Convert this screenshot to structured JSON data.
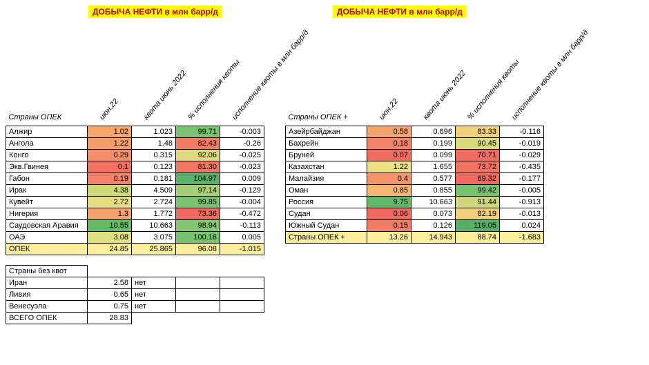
{
  "title_left": "ДОБЫЧА НЕФТИ в млн барр/д",
  "title_right": "ДОБЫЧА НЕФТИ в млн барр/д",
  "headers": {
    "country_left": "Страны ОПЕК",
    "country_right": "Страны ОПЕК +",
    "no_quota": "Страны без квот",
    "col1": "июн.22",
    "col2": "квота июнь 2022",
    "col3": "% исполнения квоты",
    "col4": "исполнение квоты в млн барр/д"
  },
  "opec": {
    "rows": [
      {
        "c": "Алжир",
        "v1": "1.02",
        "v2": "1.023",
        "v3": "99.71",
        "v4": "-0.003",
        "bg1": "#f8a66c",
        "bg3": "#7cc36f"
      },
      {
        "c": "Ангола",
        "v1": "1.22",
        "v2": "1.48",
        "v3": "82.43",
        "v4": "-0.26",
        "bg1": "#f49b6a",
        "bg3": "#f37a64"
      },
      {
        "c": "Конго",
        "v1": "0.29",
        "v2": "0.315",
        "v3": "92.06",
        "v4": "-0.025",
        "bg1": "#f68e6a",
        "bg3": "#e0da7d"
      },
      {
        "c": "Экв.Гвинея",
        "v1": "0.1",
        "v2": "0.123",
        "v3": "81.30",
        "v4": "-0.023",
        "bg1": "#f27161",
        "bg3": "#f37864"
      },
      {
        "c": "Габон",
        "v1": "0.19",
        "v2": "0.181",
        "v3": "104.97",
        "v4": "0.009",
        "bg1": "#f4836a",
        "bg3": "#5bb169"
      },
      {
        "c": "Ирак",
        "v1": "4.38",
        "v2": "4.509",
        "v3": "97.14",
        "v4": "-0.129",
        "bg1": "#d0d97a",
        "bg3": "#a7cf76"
      },
      {
        "c": "Кувейт",
        "v1": "2.72",
        "v2": "2.724",
        "v3": "99.85",
        "v4": "-0.004",
        "bg1": "#e6df82",
        "bg3": "#7bc36f"
      },
      {
        "c": "Нигерия",
        "v1": "1.3",
        "v2": "1.772",
        "v3": "73.36",
        "v4": "-0.472",
        "bg1": "#f5a26b",
        "bg3": "#ef6b60"
      },
      {
        "c": "Саудовская Аравия",
        "v1": "10.55",
        "v2": "10.663",
        "v3": "98.94",
        "v4": "-0.113",
        "bg1": "#65ba68",
        "bg3": "#86c672"
      },
      {
        "c": "ОАЭ",
        "v1": "3.08",
        "v2": "3.075",
        "v3": "100.16",
        "v4": "0.005",
        "bg1": "#dde181",
        "bg3": "#76c26e"
      }
    ],
    "total": {
      "c": "ОПЕК",
      "v1": "24.85",
      "v2": "25.865",
      "v3": "96.08",
      "v4": "-1.015"
    }
  },
  "opec_plus": {
    "rows": [
      {
        "c": "Азейрбайджан",
        "v1": "0.58",
        "v2": "0.696",
        "v3": "83.33",
        "v4": "-0.116",
        "bg1": "#f6a66c",
        "bg3": "#f1d07c"
      },
      {
        "c": "Бахрейн",
        "v1": "0.18",
        "v2": "0.199",
        "v3": "90.45",
        "v4": "-0.019",
        "bg1": "#f3826a",
        "bg3": "#d6db7c"
      },
      {
        "c": "Бруней",
        "v1": "0.07",
        "v2": "0.099",
        "v3": "70.71",
        "v4": "-0.029",
        "bg1": "#ef6c60",
        "bg3": "#f06c60"
      },
      {
        "c": "Казахстан",
        "v1": "1.22",
        "v2": "1.655",
        "v3": "73.72",
        "v4": "-0.435",
        "bg1": "#ece184",
        "bg3": "#f17461"
      },
      {
        "c": "Малайзия",
        "v1": "0.4",
        "v2": "0.577",
        "v3": "69.32",
        "v4": "-0.177",
        "bg1": "#f4966a",
        "bg3": "#ef6b60"
      },
      {
        "c": "Оман",
        "v1": "0.85",
        "v2": "0.855",
        "v3": "99.42",
        "v4": "-0.005",
        "bg1": "#f7b573",
        "bg3": "#77c26e"
      },
      {
        "c": "Россия",
        "v1": "9.75",
        "v2": "10.663",
        "v3": "91.44",
        "v4": "-0.913",
        "bg1": "#65ba68",
        "bg3": "#ced87a"
      },
      {
        "c": "Судан",
        "v1": "0.06",
        "v2": "0.073",
        "v3": "82.19",
        "v4": "-0.013",
        "bg1": "#ef6b60",
        "bg3": "#f3ce7c"
      },
      {
        "c": "Южный Судан",
        "v1": "0.15",
        "v2": "0.126",
        "v3": "119.05",
        "v4": "0.024",
        "bg1": "#f17c65",
        "bg3": "#56ae67"
      }
    ],
    "total": {
      "c": "Страны ОПЕК +",
      "v1": "13.26",
      "v2": "14.943",
      "v3": "88.74",
      "v4": "-1.683"
    }
  },
  "no_quota": {
    "rows": [
      {
        "c": "Иран",
        "v1": "2.58",
        "v2": "нет"
      },
      {
        "c": "Ливия",
        "v1": "0.65",
        "v2": "нет"
      },
      {
        "c": "Венесуэла",
        "v1": "0.75",
        "v2": "нет"
      }
    ],
    "total": {
      "c": "ВСЕГО ОПЕК",
      "v1": "28.83"
    }
  }
}
